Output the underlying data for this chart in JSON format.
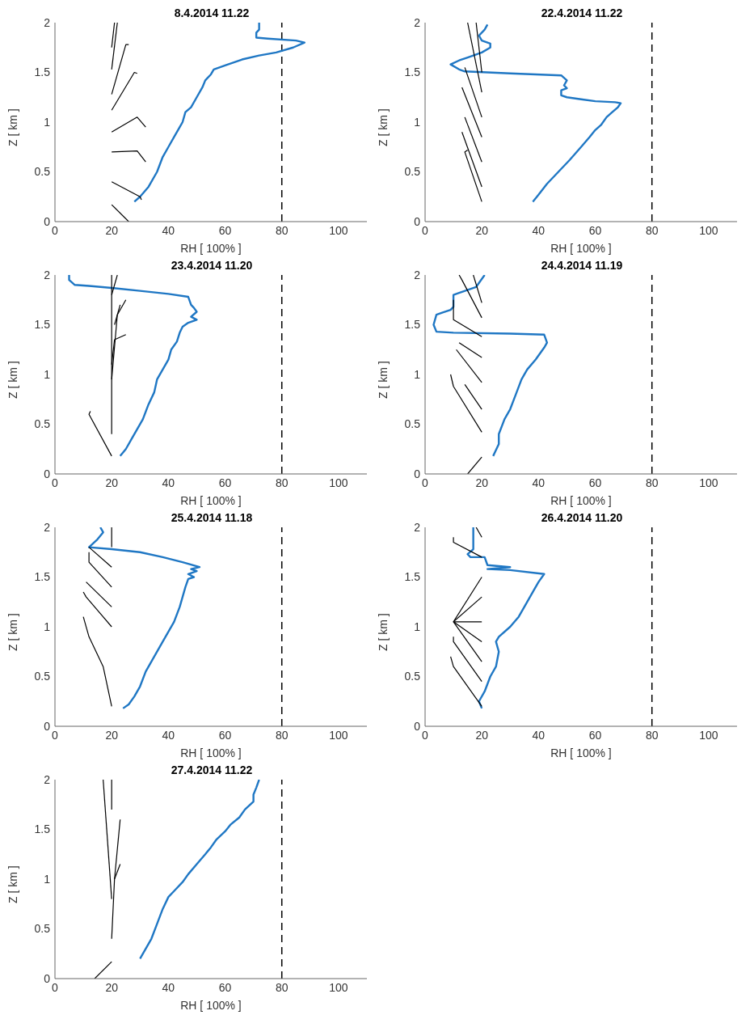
{
  "chart_data": [
    {
      "type": "line",
      "title": "8.4.2014 11.22",
      "xlabel": "RH [ 100% ]",
      "ylabel": "Z [ km ]",
      "xlim": [
        0,
        110
      ],
      "xticks": [
        0,
        20,
        40,
        60,
        80,
        100
      ],
      "ylim": [
        0,
        2
      ],
      "yticks": [
        0,
        0.5,
        1,
        1.5,
        2
      ],
      "ref_lines": [
        {
          "axis": "x",
          "value": 80,
          "color": "#000000",
          "line_style": "dashed"
        }
      ],
      "series": [
        {
          "color": "#1f77c4",
          "x": [
            28,
            30,
            33,
            36,
            38,
            40,
            42,
            44,
            45,
            46,
            48,
            50,
            52,
            53,
            55,
            56,
            60,
            66,
            72,
            78,
            84,
            88,
            85,
            75,
            71,
            71,
            72,
            72
          ],
          "values": [
            0.2,
            0.25,
            0.35,
            0.5,
            0.65,
            0.75,
            0.85,
            0.95,
            1.0,
            1.1,
            1.15,
            1.25,
            1.35,
            1.42,
            1.48,
            1.53,
            1.57,
            1.63,
            1.67,
            1.7,
            1.75,
            1.8,
            1.82,
            1.84,
            1.85,
            1.9,
            1.93,
            2.0
          ]
        },
        {
          "color": "#000000",
          "x": [
            20,
            26
          ],
          "values": [
            0.17,
            0
          ]
        },
        {
          "color": "#000000",
          "x": [
            20,
            30,
            30.5
          ],
          "values": [
            0.4,
            0.25,
            0.22
          ]
        },
        {
          "color": "#000000",
          "x": [
            20,
            29,
            32
          ],
          "values": [
            0.7,
            0.71,
            0.6
          ]
        },
        {
          "color": "#000000",
          "x": [
            20,
            29,
            32
          ],
          "values": [
            0.9,
            1.05,
            0.95
          ]
        },
        {
          "color": "#000000",
          "x": [
            20,
            28,
            29
          ],
          "values": [
            1.12,
            1.5,
            1.49
          ]
        },
        {
          "color": "#000000",
          "x": [
            20,
            25,
            26
          ],
          "values": [
            1.28,
            1.78,
            1.78
          ]
        },
        {
          "color": "#000000",
          "x": [
            20,
            22
          ],
          "values": [
            1.53,
            2.0
          ]
        },
        {
          "color": "#000000",
          "x": [
            20,
            21
          ],
          "values": [
            1.75,
            2.0
          ]
        }
      ]
    },
    {
      "type": "line",
      "title": "22.4.2014 11.22",
      "xlabel": "RH [ 100% ]",
      "ylabel": "Z [ km ]",
      "xlim": [
        0,
        110
      ],
      "xticks": [
        0,
        20,
        40,
        60,
        80,
        100
      ],
      "ylim": [
        0,
        2
      ],
      "yticks": [
        0,
        0.5,
        1,
        1.5,
        2
      ],
      "ref_lines": [
        {
          "axis": "x",
          "value": 80,
          "color": "#000000",
          "line_style": "dashed"
        }
      ],
      "series": [
        {
          "color": "#1f77c4",
          "x": [
            38,
            40,
            43,
            47,
            51,
            55,
            58,
            60,
            62,
            64,
            66,
            68,
            69,
            67,
            60,
            55,
            50,
            48,
            48,
            50,
            49,
            50,
            48,
            30,
            14,
            12,
            9,
            12,
            15,
            20,
            23,
            23,
            20,
            19,
            21,
            22
          ],
          "values": [
            0.2,
            0.27,
            0.38,
            0.5,
            0.62,
            0.75,
            0.85,
            0.92,
            0.97,
            1.05,
            1.1,
            1.15,
            1.19,
            1.2,
            1.21,
            1.23,
            1.25,
            1.27,
            1.32,
            1.34,
            1.37,
            1.42,
            1.47,
            1.49,
            1.51,
            1.53,
            1.58,
            1.62,
            1.65,
            1.7,
            1.75,
            1.79,
            1.82,
            1.87,
            1.93,
            1.98
          ]
        },
        {
          "color": "#000000",
          "x": [
            20,
            14,
            15
          ],
          "values": [
            0.2,
            0.7,
            0.72
          ]
        },
        {
          "color": "#000000",
          "x": [
            20,
            13
          ],
          "values": [
            0.35,
            0.9
          ]
        },
        {
          "color": "#000000",
          "x": [
            20,
            14
          ],
          "values": [
            0.6,
            1.05
          ]
        },
        {
          "color": "#000000",
          "x": [
            20,
            13
          ],
          "values": [
            0.85,
            1.35
          ]
        },
        {
          "color": "#000000",
          "x": [
            20,
            14
          ],
          "values": [
            1.05,
            1.55
          ]
        },
        {
          "color": "#000000",
          "x": [
            20,
            15
          ],
          "values": [
            1.3,
            2.0
          ]
        },
        {
          "color": "#000000",
          "x": [
            20,
            18
          ],
          "values": [
            1.5,
            2.0
          ]
        }
      ]
    },
    {
      "type": "line",
      "title": "23.4.2014 11.20",
      "xlabel": "RH [ 100% ]",
      "ylabel": "Z [ km ]",
      "xlim": [
        0,
        110
      ],
      "xticks": [
        0,
        20,
        40,
        60,
        80,
        100
      ],
      "ylim": [
        0,
        2
      ],
      "yticks": [
        0,
        0.5,
        1,
        1.5,
        2
      ],
      "ref_lines": [
        {
          "axis": "x",
          "value": 80,
          "color": "#000000",
          "line_style": "dashed"
        }
      ],
      "series": [
        {
          "color": "#1f77c4",
          "x": [
            23,
            25,
            27,
            29,
            31,
            33,
            35,
            36,
            38,
            40,
            41,
            43,
            44,
            45,
            47,
            50,
            48,
            50,
            49,
            48,
            47,
            40,
            30,
            20,
            12,
            7,
            5,
            5
          ],
          "values": [
            0.18,
            0.25,
            0.35,
            0.45,
            0.55,
            0.7,
            0.82,
            0.95,
            1.05,
            1.15,
            1.25,
            1.33,
            1.42,
            1.48,
            1.52,
            1.55,
            1.58,
            1.63,
            1.67,
            1.7,
            1.78,
            1.81,
            1.84,
            1.87,
            1.89,
            1.9,
            1.95,
            2.0
          ]
        },
        {
          "color": "#000000",
          "x": [
            20,
            12,
            12.5
          ],
          "values": [
            0.18,
            0.6,
            0.63
          ]
        },
        {
          "color": "#000000",
          "x": [
            20,
            20
          ],
          "values": [
            0.4,
            2.0
          ]
        },
        {
          "color": "#000000",
          "x": [
            20,
            22,
            25
          ],
          "values": [
            0.95,
            1.6,
            1.75
          ]
        },
        {
          "color": "#000000",
          "x": [
            20,
            21,
            25
          ],
          "values": [
            1.1,
            1.35,
            1.4
          ]
        },
        {
          "color": "#000000",
          "x": [
            21,
            23
          ],
          "values": [
            1.5,
            1.7
          ]
        },
        {
          "color": "#000000",
          "x": [
            20,
            22
          ],
          "values": [
            1.8,
            2.0
          ]
        }
      ]
    },
    {
      "type": "line",
      "title": "24.4.2014 11.19",
      "xlabel": "RH [ 100% ]",
      "ylabel": "Z [ km ]",
      "xlim": [
        0,
        110
      ],
      "xticks": [
        0,
        20,
        40,
        60,
        80,
        100
      ],
      "ylim": [
        0,
        2
      ],
      "yticks": [
        0,
        0.5,
        1,
        1.5,
        2
      ],
      "ref_lines": [
        {
          "axis": "x",
          "value": 80,
          "color": "#000000",
          "line_style": "dashed"
        }
      ],
      "series": [
        {
          "color": "#1f77c4",
          "x": [
            24,
            26,
            26,
            28,
            30,
            32,
            34,
            36,
            39,
            42,
            43,
            42,
            30,
            10,
            4,
            3,
            4,
            6,
            9,
            10,
            10,
            12,
            18,
            21
          ],
          "values": [
            0.18,
            0.3,
            0.4,
            0.55,
            0.65,
            0.8,
            0.95,
            1.05,
            1.15,
            1.27,
            1.32,
            1.4,
            1.41,
            1.42,
            1.43,
            1.5,
            1.6,
            1.62,
            1.65,
            1.68,
            1.8,
            1.82,
            1.88,
            2.0
          ]
        },
        {
          "color": "#000000",
          "x": [
            15,
            20
          ],
          "values": [
            0,
            0.17
          ]
        },
        {
          "color": "#000000",
          "x": [
            20,
            10,
            9
          ],
          "values": [
            0.42,
            0.88,
            1.0
          ]
        },
        {
          "color": "#000000",
          "x": [
            20,
            14
          ],
          "values": [
            0.65,
            0.9
          ]
        },
        {
          "color": "#000000",
          "x": [
            20,
            11
          ],
          "values": [
            0.92,
            1.25
          ]
        },
        {
          "color": "#000000",
          "x": [
            20,
            12
          ],
          "values": [
            1.17,
            1.32
          ]
        },
        {
          "color": "#000000",
          "x": [
            20,
            10,
            10
          ],
          "values": [
            1.38,
            1.55,
            1.75
          ]
        },
        {
          "color": "#000000",
          "x": [
            20,
            13,
            12
          ],
          "values": [
            1.57,
            1.95,
            2.0
          ]
        },
        {
          "color": "#000000",
          "x": [
            20,
            17
          ],
          "values": [
            1.72,
            2.0
          ]
        }
      ]
    },
    {
      "type": "line",
      "title": "25.4.2014 11.18",
      "xlabel": "RH [ 100% ]",
      "ylabel": "Z [ km ]",
      "xlim": [
        0,
        110
      ],
      "xticks": [
        0,
        20,
        40,
        60,
        80,
        100
      ],
      "ylim": [
        0,
        2
      ],
      "yticks": [
        0,
        0.5,
        1,
        1.5,
        2
      ],
      "ref_lines": [
        {
          "axis": "x",
          "value": 80,
          "color": "#000000",
          "line_style": "dashed"
        }
      ],
      "series": [
        {
          "color": "#1f77c4",
          "x": [
            24,
            26,
            28,
            30,
            32,
            35,
            38,
            40,
            42,
            44,
            45,
            46,
            47,
            49,
            47,
            50,
            48,
            51,
            45,
            38,
            30,
            20,
            12,
            15,
            17,
            16
          ],
          "values": [
            0.18,
            0.22,
            0.3,
            0.4,
            0.55,
            0.7,
            0.85,
            0.95,
            1.05,
            1.2,
            1.3,
            1.4,
            1.48,
            1.5,
            1.53,
            1.56,
            1.58,
            1.6,
            1.65,
            1.7,
            1.75,
            1.78,
            1.8,
            1.88,
            1.95,
            2.0
          ]
        },
        {
          "color": "#000000",
          "x": [
            20,
            17,
            12,
            10
          ],
          "values": [
            0.2,
            0.6,
            0.9,
            1.1
          ]
        },
        {
          "color": "#000000",
          "x": [
            20,
            11,
            10
          ],
          "values": [
            1.0,
            1.3,
            1.35
          ]
        },
        {
          "color": "#000000",
          "x": [
            20,
            11
          ],
          "values": [
            1.2,
            1.45
          ]
        },
        {
          "color": "#000000",
          "x": [
            20,
            12,
            12
          ],
          "values": [
            1.4,
            1.65,
            1.75
          ]
        },
        {
          "color": "#000000",
          "x": [
            20,
            12
          ],
          "values": [
            1.6,
            1.8
          ]
        },
        {
          "color": "#000000",
          "x": [
            20,
            20
          ],
          "values": [
            1.8,
            2.0
          ]
        }
      ]
    },
    {
      "type": "line",
      "title": "26.4.2014 11.20",
      "xlabel": "RH [ 100% ]",
      "ylabel": "Z [ km ]",
      "xlim": [
        0,
        110
      ],
      "xticks": [
        0,
        20,
        40,
        60,
        80,
        100
      ],
      "ylim": [
        0,
        2
      ],
      "yticks": [
        0,
        0.5,
        1,
        1.5,
        2
      ],
      "ref_lines": [
        {
          "axis": "x",
          "value": 80,
          "color": "#000000",
          "line_style": "dashed"
        }
      ],
      "series": [
        {
          "color": "#1f77c4",
          "x": [
            20,
            19,
            21,
            23,
            25,
            26,
            25,
            26,
            30,
            33,
            35,
            38,
            40,
            42,
            30,
            22,
            30,
            22,
            21,
            16,
            15,
            17,
            17
          ],
          "values": [
            0.18,
            0.25,
            0.35,
            0.5,
            0.6,
            0.75,
            0.85,
            0.9,
            1.0,
            1.1,
            1.2,
            1.35,
            1.45,
            1.53,
            1.57,
            1.58,
            1.6,
            1.62,
            1.7,
            1.7,
            1.73,
            1.78,
            2.0
          ]
        },
        {
          "color": "#000000",
          "x": [
            20,
            10,
            9
          ],
          "values": [
            0.2,
            0.6,
            0.7
          ]
        },
        {
          "color": "#000000",
          "x": [
            20,
            10,
            10
          ],
          "values": [
            0.45,
            0.85,
            0.9
          ]
        },
        {
          "color": "#000000",
          "x": [
            20,
            10
          ],
          "values": [
            0.65,
            1.05
          ]
        },
        {
          "color": "#000000",
          "x": [
            20,
            10,
            20
          ],
          "values": [
            0.85,
            1.05,
            1.05
          ]
        },
        {
          "color": "#000000",
          "x": [
            10,
            20
          ],
          "values": [
            1.05,
            1.3
          ]
        },
        {
          "color": "#000000",
          "x": [
            10,
            20
          ],
          "values": [
            1.05,
            1.5
          ]
        },
        {
          "color": "#000000",
          "x": [
            20,
            10,
            10
          ],
          "values": [
            1.7,
            1.85,
            1.9
          ]
        },
        {
          "color": "#000000",
          "x": [
            20,
            18
          ],
          "values": [
            1.9,
            2.0
          ]
        }
      ]
    },
    {
      "type": "line",
      "title": "27.4.2014 11.22",
      "xlabel": "RH [ 100% ]",
      "ylabel": "Z [ km ]",
      "xlim": [
        0,
        110
      ],
      "xticks": [
        0,
        20,
        40,
        60,
        80,
        100
      ],
      "ylim": [
        0,
        2
      ],
      "yticks": [
        0,
        0.5,
        1,
        1.5,
        2
      ],
      "ref_lines": [
        {
          "axis": "x",
          "value": 80,
          "color": "#000000",
          "line_style": "dashed"
        }
      ],
      "series": [
        {
          "color": "#1f77c4",
          "x": [
            30,
            32,
            34,
            36,
            38,
            40,
            42,
            45,
            47,
            50,
            53,
            55,
            57,
            60,
            62,
            65,
            67,
            70,
            70,
            71,
            72
          ],
          "values": [
            0.2,
            0.3,
            0.4,
            0.55,
            0.7,
            0.82,
            0.88,
            0.97,
            1.05,
            1.15,
            1.25,
            1.32,
            1.4,
            1.48,
            1.55,
            1.62,
            1.7,
            1.78,
            1.85,
            1.92,
            2.0
          ]
        },
        {
          "color": "#000000",
          "x": [
            14,
            20
          ],
          "values": [
            0,
            0.17
          ]
        },
        {
          "color": "#000000",
          "x": [
            20,
            21,
            23
          ],
          "values": [
            0.4,
            1.0,
            1.15
          ]
        },
        {
          "color": "#000000",
          "x": [
            21,
            23
          ],
          "values": [
            1.0,
            1.6
          ]
        },
        {
          "color": "#000000",
          "x": [
            20,
            17
          ],
          "values": [
            0.8,
            2.0
          ]
        },
        {
          "color": "#000000",
          "x": [
            20,
            20
          ],
          "values": [
            1.7,
            2.0
          ]
        }
      ]
    }
  ]
}
